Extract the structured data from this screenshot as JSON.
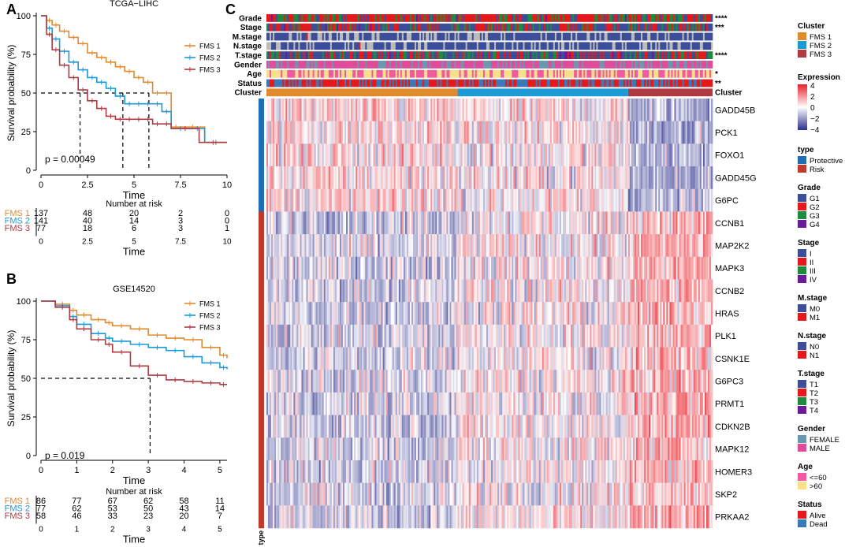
{
  "panels": {
    "a": "A",
    "b": "B",
    "c": "C"
  },
  "colors": {
    "fms1": "#E08A2E",
    "fms2": "#1B9AD6",
    "fms3": "#B03A42",
    "protective": "#1F6DB4",
    "risk": "#C0392B",
    "heat_low": "#2B2F8C",
    "heat_mid": "#FFFFFF",
    "heat_high": "#E8202A"
  },
  "chart_data": [
    {
      "type": "line",
      "id": "km_tcga",
      "title": "TCGA−LIHC",
      "xlabel": "Time",
      "ylabel": "Survival probability (%)",
      "xlim": [
        0,
        10
      ],
      "ylim": [
        0,
        100
      ],
      "xticks": [
        "0",
        "2.5",
        "5",
        "7.5",
        "10"
      ],
      "yticks": [
        "0",
        "25",
        "50",
        "75",
        "100"
      ],
      "legend": [
        "FMS 1",
        "FMS 2",
        "FMS 3"
      ],
      "pvalue": "p = 0.00049",
      "median_lines": [
        2.1,
        4.4,
        5.8
      ],
      "series": [
        {
          "name": "FMS 1",
          "x": [
            0,
            0.3,
            0.6,
            1,
            1.5,
            2,
            2.5,
            3,
            3.5,
            4,
            4.5,
            5,
            5.5,
            6,
            6.5,
            7,
            7.5,
            8.8,
            10
          ],
          "y": [
            100,
            97,
            94,
            90,
            86,
            82,
            76,
            73,
            70,
            67,
            64,
            60,
            57,
            50,
            50,
            28,
            28,
            18,
            18
          ]
        },
        {
          "name": "FMS 2",
          "x": [
            0,
            0.3,
            0.6,
            1,
            1.5,
            2,
            2.5,
            3,
            3.5,
            4,
            4.5,
            5,
            5.5,
            6,
            6.5,
            7,
            8,
            8.8,
            10
          ],
          "y": [
            100,
            92,
            85,
            77,
            70,
            65,
            60,
            57,
            53,
            48,
            43,
            43,
            43,
            43,
            38,
            27,
            27,
            18,
            18
          ]
        },
        {
          "name": "FMS 3",
          "x": [
            0,
            0.3,
            0.6,
            1,
            1.5,
            2,
            2.5,
            3,
            3.5,
            4,
            4.5,
            5,
            5.5,
            6,
            6.5,
            7,
            8.5,
            10
          ],
          "y": [
            100,
            88,
            78,
            68,
            60,
            52,
            45,
            40,
            35,
            33,
            33,
            33,
            33,
            30,
            30,
            27,
            18,
            18
          ]
        }
      ],
      "risk_table": {
        "title": "Number at risk",
        "xticks": [
          "0",
          "2.5",
          "5",
          "7.5",
          "10"
        ],
        "xlabel": "Time",
        "rows": [
          {
            "name": "FMS 1",
            "values": [
              "137",
              "48",
              "20",
              "2",
              "0"
            ]
          },
          {
            "name": "FMS 2",
            "values": [
              "141",
              "40",
              "14",
              "3",
              "0"
            ]
          },
          {
            "name": "FMS 3",
            "values": [
              "77",
              "18",
              "6",
              "3",
              "1"
            ]
          }
        ]
      }
    },
    {
      "type": "line",
      "id": "km_gse",
      "title": "GSE14520",
      "xlabel": "Time",
      "ylabel": "Survival probability (%)",
      "xlim": [
        0,
        5.2
      ],
      "ylim": [
        0,
        100
      ],
      "xticks": [
        "0",
        "1",
        "2",
        "3",
        "4",
        "5"
      ],
      "yticks": [
        "0",
        "25",
        "50",
        "75",
        "100"
      ],
      "legend": [
        "FMS 1",
        "FMS 2",
        "FMS 3"
      ],
      "pvalue": "p = 0.019",
      "median_lines": [
        3.05
      ],
      "series": [
        {
          "name": "FMS 1",
          "x": [
            0,
            0.4,
            0.8,
            1,
            1.4,
            1.8,
            2,
            2.5,
            3,
            3.5,
            4,
            4.5,
            5,
            5.2
          ],
          "y": [
            100,
            98,
            94,
            91,
            88,
            86,
            84,
            82,
            78,
            76,
            75,
            70,
            65,
            63
          ]
        },
        {
          "name": "FMS 2",
          "x": [
            0,
            0.4,
            0.8,
            1,
            1.4,
            1.8,
            2,
            2.5,
            3,
            3.5,
            4,
            4.5,
            5,
            5.2
          ],
          "y": [
            100,
            97,
            90,
            85,
            79,
            76,
            74,
            72,
            70,
            68,
            64,
            60,
            57,
            56
          ]
        },
        {
          "name": "FMS 3",
          "x": [
            0,
            0.4,
            0.8,
            1,
            1.4,
            1.8,
            2,
            2.5,
            3,
            3.5,
            4,
            4.5,
            5,
            5.2
          ],
          "y": [
            100,
            96,
            88,
            82,
            75,
            72,
            67,
            58,
            52,
            49,
            48,
            47,
            46,
            46
          ]
        }
      ],
      "risk_table": {
        "title": "Number at risk",
        "xticks": [
          "0",
          "1",
          "2",
          "3",
          "4",
          "5"
        ],
        "xlabel": "Time",
        "rows": [
          {
            "name": "FMS 1",
            "values": [
              "86",
              "77",
              "67",
              "62",
              "58",
              "11"
            ]
          },
          {
            "name": "FMS 2",
            "values": [
              "77",
              "62",
              "53",
              "50",
              "43",
              "14"
            ]
          },
          {
            "name": "FMS 3",
            "values": [
              "58",
              "46",
              "33",
              "23",
              "20",
              "7"
            ]
          }
        ]
      }
    },
    {
      "type": "heatmap",
      "id": "expression_heatmap",
      "annotation_tracks": [
        {
          "name": "Grade",
          "sig": "****"
        },
        {
          "name": "Stage",
          "sig": "***"
        },
        {
          "name": "M.stage",
          "sig": ""
        },
        {
          "name": "N.stage",
          "sig": ""
        },
        {
          "name": "T.stage",
          "sig": "****"
        },
        {
          "name": "Gender",
          "sig": ""
        },
        {
          "name": "Age",
          "sig": "*"
        },
        {
          "name": "Status",
          "sig": "**"
        },
        {
          "name": "Cluster",
          "sig": ""
        }
      ],
      "cluster_right_label": "Cluster",
      "cluster_fractions": [
        0.43,
        0.38,
        0.19
      ],
      "type_label": "type",
      "genes": [
        {
          "name": "GADD45B",
          "type": "Protective"
        },
        {
          "name": "PCK1",
          "type": "Protective"
        },
        {
          "name": "FOXO1",
          "type": "Protective"
        },
        {
          "name": "GADD45G",
          "type": "Protective"
        },
        {
          "name": "G6PC",
          "type": "Protective"
        },
        {
          "name": "CCNB1",
          "type": "Risk"
        },
        {
          "name": "MAP2K2",
          "type": "Risk"
        },
        {
          "name": "MAPK3",
          "type": "Risk"
        },
        {
          "name": "CCNB2",
          "type": "Risk"
        },
        {
          "name": "HRAS",
          "type": "Risk"
        },
        {
          "name": "PLK1",
          "type": "Risk"
        },
        {
          "name": "CSNK1E",
          "type": "Risk"
        },
        {
          "name": "G6PC3",
          "type": "Risk"
        },
        {
          "name": "PRMT1",
          "type": "Risk"
        },
        {
          "name": "CDKN2B",
          "type": "Risk"
        },
        {
          "name": "MAPK12",
          "type": "Risk"
        },
        {
          "name": "HOMER3",
          "type": "Risk"
        },
        {
          "name": "SKP2",
          "type": "Risk"
        },
        {
          "name": "PRKAA2",
          "type": "Risk"
        }
      ],
      "legends": [
        {
          "title": "Cluster",
          "items": [
            {
              "label": "FMS 1",
              "color": "#E08A2E"
            },
            {
              "label": "FMS 2",
              "color": "#1B9AD6"
            },
            {
              "label": "FMS 3",
              "color": "#B03A42"
            }
          ]
        },
        {
          "title": "Expression",
          "gradient": true,
          "ticks": [
            "4",
            "2",
            "0",
            "−2",
            "−4"
          ]
        },
        {
          "title": "type",
          "items": [
            {
              "label": "Protective",
              "color": "#1F6DB4"
            },
            {
              "label": "Risk",
              "color": "#C0392B"
            }
          ]
        },
        {
          "title": "Grade",
          "items": [
            {
              "label": "G1",
              "color": "#3C4D99"
            },
            {
              "label": "G2",
              "color": "#E31A1C"
            },
            {
              "label": "G3",
              "color": "#1E8A3E"
            },
            {
              "label": "G4",
              "color": "#6A1B9A"
            }
          ]
        },
        {
          "title": "Stage",
          "items": [
            {
              "label": "I",
              "color": "#3C4D99"
            },
            {
              "label": "II",
              "color": "#E31A1C"
            },
            {
              "label": "III",
              "color": "#1E8A3E"
            },
            {
              "label": "IV",
              "color": "#6A1B9A"
            }
          ]
        },
        {
          "title": "M.stage",
          "items": [
            {
              "label": "M0",
              "color": "#3C4D99"
            },
            {
              "label": "M1",
              "color": "#E31A1C"
            }
          ]
        },
        {
          "title": "N.stage",
          "items": [
            {
              "label": "N0",
              "color": "#3C4D99"
            },
            {
              "label": "N1",
              "color": "#E31A1C"
            }
          ]
        },
        {
          "title": "T.stage",
          "items": [
            {
              "label": "T1",
              "color": "#3C4D99"
            },
            {
              "label": "T2",
              "color": "#E31A1C"
            },
            {
              "label": "T3",
              "color": "#1E8A3E"
            },
            {
              "label": "T4",
              "color": "#6A1B9A"
            }
          ]
        },
        {
          "title": "Gender",
          "items": [
            {
              "label": "FEMALE",
              "color": "#6C97B0"
            },
            {
              "label": "MALE",
              "color": "#E04B9A"
            }
          ]
        },
        {
          "title": "Age",
          "items": [
            {
              "label": "<=60",
              "color": "#F05A9E"
            },
            {
              "label": ">60",
              "color": "#F7E08A"
            }
          ]
        },
        {
          "title": "Status",
          "items": [
            {
              "label": "Alive",
              "color": "#E31A1C"
            },
            {
              "label": "Dead",
              "color": "#3A78B8"
            }
          ]
        }
      ]
    }
  ]
}
